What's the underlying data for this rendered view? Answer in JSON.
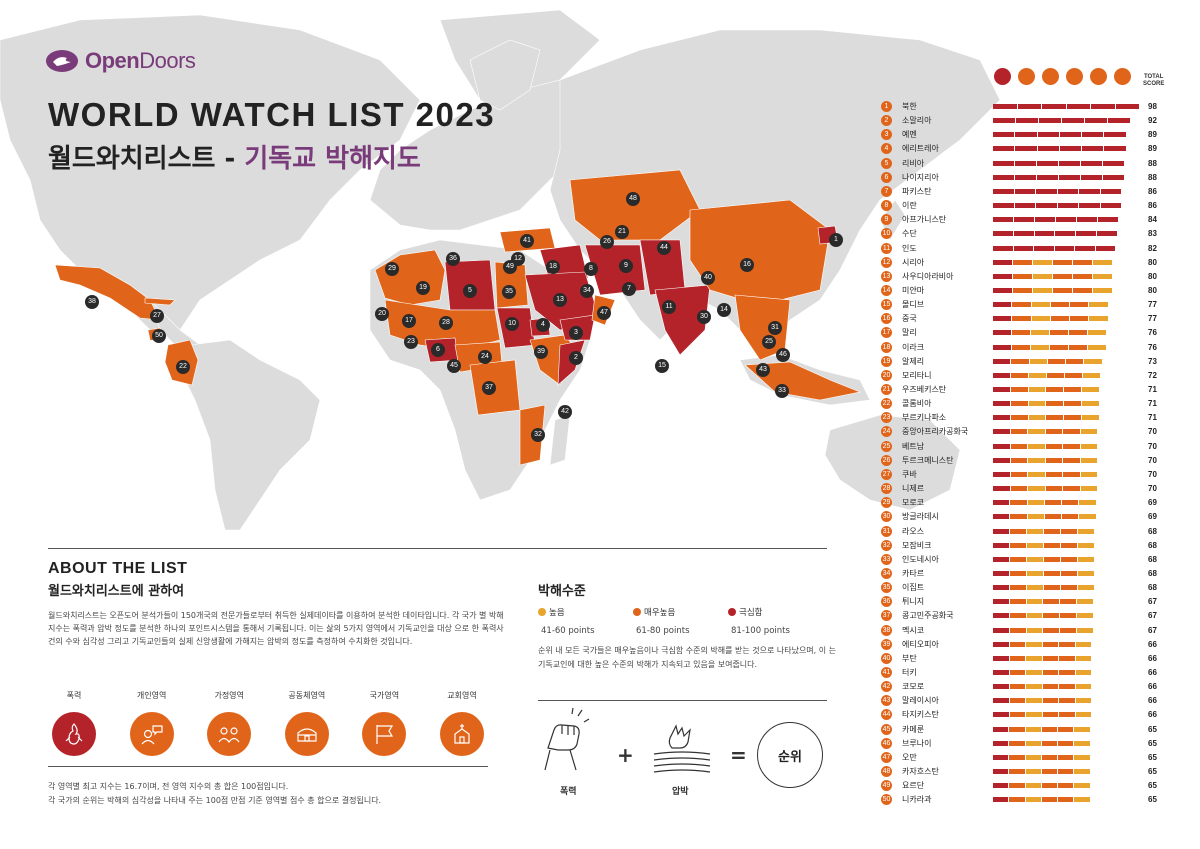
{
  "header": {
    "brand_open": "Open",
    "brand_doors": "Doors",
    "title_en": "WORLD WATCH LIST 2023",
    "title_ko_main": "월드와치리스트 - ",
    "title_ko_accent": "기독교 박해지도"
  },
  "about": {
    "title": "ABOUT THE LIST",
    "subtitle": "월드와치리스트에 관하여",
    "body": "월드와치리스트는 오픈도어 분석가들이 150개국의 전문가들로부터 취득한 실제데이타를 이용하여 분석한 데이타입니다. 각 국가 별 박해지수는 폭력과 압박 정도를 분석한 하나의 포인트시스템을 통해서 기록됩니다. 이는 삶의 5가지 영역에서 기독교인을 대상 으로 한 폭력사건의 수와 심각성 그리고 기독교인들의 실제 신앙생활에 가해지는 압박의 정도를 측정하여 수치화한 것입니다.",
    "categories": [
      {
        "label": "폭력",
        "icon": "flame-hands-icon",
        "color": "#b5232a"
      },
      {
        "label": "개인영역",
        "icon": "person-speech-icon",
        "color": "#e0651a"
      },
      {
        "label": "가정영역",
        "icon": "family-icon",
        "color": "#e0651a"
      },
      {
        "label": "공동체영역",
        "icon": "house-icon",
        "color": "#e0651a"
      },
      {
        "label": "국가영역",
        "icon": "flag-icon",
        "color": "#e0651a"
      },
      {
        "label": "교회영역",
        "icon": "church-icon",
        "color": "#e0651a"
      }
    ],
    "footnote_1": "각 영역별 최고 지수는 16.7이며, 전 영역 지수의 총 합은 100점입니다.",
    "footnote_2": "각 국가의 순위는 박해의 심각성을 나타내 주는 100점 만점 기준 영역별 점수 총 합으로 결정됩니다."
  },
  "legend": {
    "title": "박해수준",
    "levels": [
      {
        "label": "높음",
        "points": "41-60 points",
        "color": "#e8a42c"
      },
      {
        "label": "매우높음",
        "points": "61-80 points",
        "color": "#e0651a"
      },
      {
        "label": "극심함",
        "points": "81-100 points",
        "color": "#b5232a"
      }
    ],
    "description": "순위 내 모든 국가들은 매우높음이나 극심함 수준의 박해를 받는 것으로 나타났으며, 이 는 기독교인에 대한 높은 수준의 박해가 지속되고 있음을 보여줍니다.",
    "eq_violence": "폭력",
    "eq_pressure": "압박",
    "eq_plus": "+",
    "eq_equals": "=",
    "eq_rank": "순위"
  },
  "ranking": {
    "total_label_1": "TOTAL",
    "total_label_2": "SCORE",
    "header_icons": [
      "flame-hands-icon",
      "person-speech-icon",
      "family-icon",
      "house-icon",
      "flag-icon",
      "church-icon"
    ],
    "countries": [
      {
        "rank": "1",
        "name": "북한",
        "score": 98
      },
      {
        "rank": "2",
        "name": "소말리아",
        "score": 92
      },
      {
        "rank": "3",
        "name": "예멘",
        "score": 89
      },
      {
        "rank": "4",
        "name": "에리트레아",
        "score": 89
      },
      {
        "rank": "5",
        "name": "리비아",
        "score": 88
      },
      {
        "rank": "6",
        "name": "나이지리아",
        "score": 88
      },
      {
        "rank": "7",
        "name": "파키스탄",
        "score": 86
      },
      {
        "rank": "8",
        "name": "이란",
        "score": 86
      },
      {
        "rank": "9",
        "name": "아프가니스탄",
        "score": 84
      },
      {
        "rank": "10",
        "name": "수단",
        "score": 83
      },
      {
        "rank": "11",
        "name": "인도",
        "score": 82
      },
      {
        "rank": "12",
        "name": "시리아",
        "score": 80
      },
      {
        "rank": "13",
        "name": "사우디아라비아",
        "score": 80
      },
      {
        "rank": "14",
        "name": "미얀마",
        "score": 80
      },
      {
        "rank": "15",
        "name": "몰디브",
        "score": 77
      },
      {
        "rank": "16",
        "name": "중국",
        "score": 77
      },
      {
        "rank": "17",
        "name": "말리",
        "score": 76
      },
      {
        "rank": "18",
        "name": "이라크",
        "score": 76
      },
      {
        "rank": "19",
        "name": "알제리",
        "score": 73
      },
      {
        "rank": "20",
        "name": "모리타니",
        "score": 72
      },
      {
        "rank": "21",
        "name": "우즈베키스탄",
        "score": 71
      },
      {
        "rank": "22",
        "name": "콜롬비아",
        "score": 71
      },
      {
        "rank": "23",
        "name": "부르키나파소",
        "score": 71
      },
      {
        "rank": "24",
        "name": "중앙아프리카공화국",
        "score": 70
      },
      {
        "rank": "25",
        "name": "베트남",
        "score": 70
      },
      {
        "rank": "26",
        "name": "투르크메니스탄",
        "score": 70
      },
      {
        "rank": "27",
        "name": "쿠바",
        "score": 70
      },
      {
        "rank": "28",
        "name": "니제르",
        "score": 70
      },
      {
        "rank": "29",
        "name": "모로코",
        "score": 69
      },
      {
        "rank": "30",
        "name": "방글라데시",
        "score": 69
      },
      {
        "rank": "31",
        "name": "라오스",
        "score": 68
      },
      {
        "rank": "32",
        "name": "모잠비크",
        "score": 68
      },
      {
        "rank": "33",
        "name": "인도네시아",
        "score": 68
      },
      {
        "rank": "34",
        "name": "카타르",
        "score": 68
      },
      {
        "rank": "35",
        "name": "이집트",
        "score": 68
      },
      {
        "rank": "36",
        "name": "튀니지",
        "score": 67
      },
      {
        "rank": "37",
        "name": "콩고민주공화국",
        "score": 67
      },
      {
        "rank": "38",
        "name": "멕시코",
        "score": 67
      },
      {
        "rank": "39",
        "name": "에티오피아",
        "score": 66
      },
      {
        "rank": "40",
        "name": "부탄",
        "score": 66
      },
      {
        "rank": "41",
        "name": "터키",
        "score": 66
      },
      {
        "rank": "42",
        "name": "코모로",
        "score": 66
      },
      {
        "rank": "43",
        "name": "말레이시아",
        "score": 66
      },
      {
        "rank": "44",
        "name": "타지키스탄",
        "score": 66
      },
      {
        "rank": "45",
        "name": "카메룬",
        "score": 65
      },
      {
        "rank": "46",
        "name": "브루나이",
        "score": 65
      },
      {
        "rank": "47",
        "name": "오만",
        "score": 65
      },
      {
        "rank": "48",
        "name": "카자흐스탄",
        "score": 65
      },
      {
        "rank": "49",
        "name": "요르단",
        "score": 65
      },
      {
        "rank": "50",
        "name": "니카라과",
        "score": 65
      }
    ]
  },
  "map": {
    "markers": [
      "1",
      "2",
      "3",
      "4",
      "5",
      "6",
      "7",
      "8",
      "9",
      "10",
      "11",
      "12",
      "13",
      "14",
      "15",
      "16",
      "17",
      "18",
      "19",
      "20",
      "21",
      "22",
      "23",
      "24",
      "25",
      "26",
      "27",
      "28",
      "29",
      "30",
      "31",
      "32",
      "33",
      "34",
      "35",
      "36",
      "37",
      "38",
      "39",
      "40",
      "41",
      "42",
      "43",
      "44",
      "45",
      "46",
      "47",
      "48",
      "49",
      "50"
    ]
  }
}
